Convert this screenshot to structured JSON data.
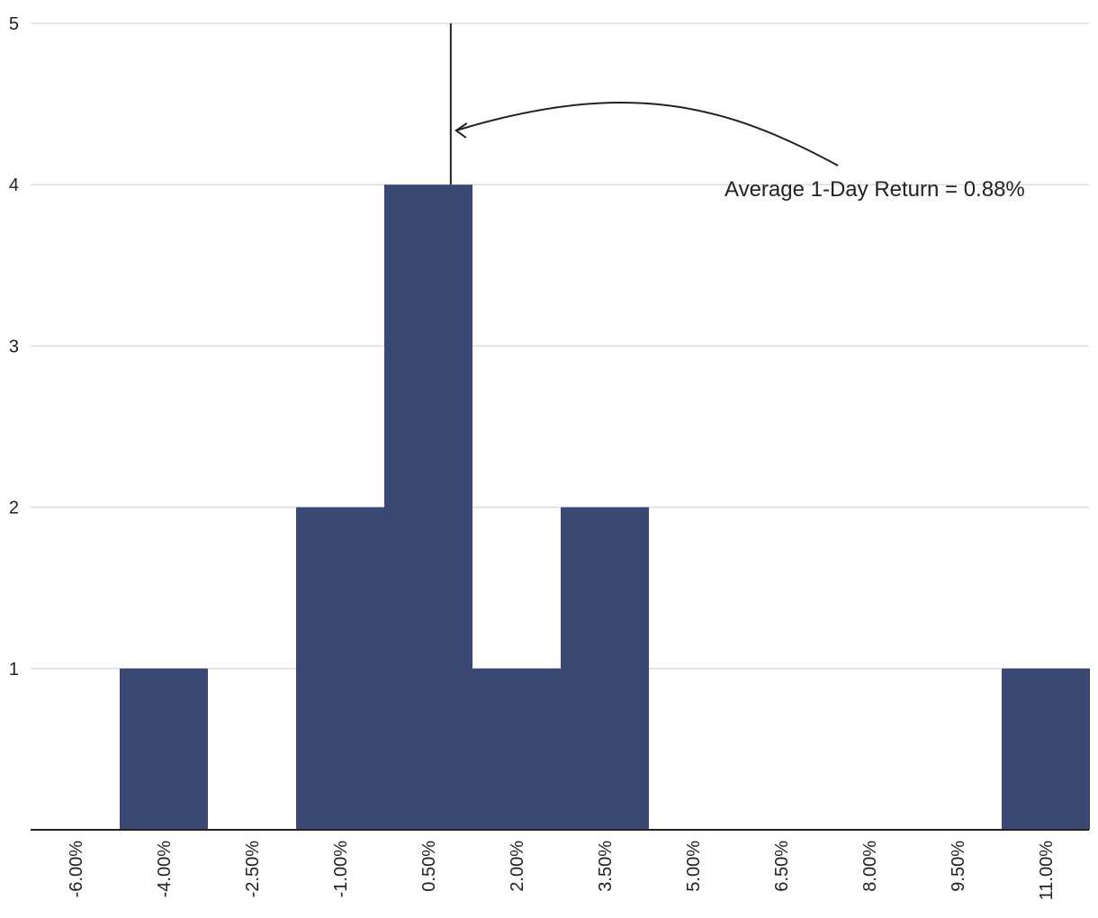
{
  "chart_data": {
    "type": "bar",
    "title": "",
    "xlabel": "",
    "ylabel": "",
    "categories": [
      "-6.00%",
      "-4.00%",
      "-2.50%",
      "-1.00%",
      "0.50%",
      "2.00%",
      "3.50%",
      "5.00%",
      "6.50%",
      "8.00%",
      "9.50%",
      "11.00%"
    ],
    "values": [
      0,
      1,
      0,
      2,
      4,
      1,
      2,
      0,
      0,
      0,
      0,
      1
    ],
    "y_ticks": [
      "1",
      "2",
      "3",
      "4",
      "5"
    ],
    "ylim": [
      0,
      5
    ],
    "grid": true,
    "bar_color": "#3b4873",
    "annotation": {
      "text": "Average 1-Day Return = 0.88%",
      "x_value": 0.88
    }
  }
}
